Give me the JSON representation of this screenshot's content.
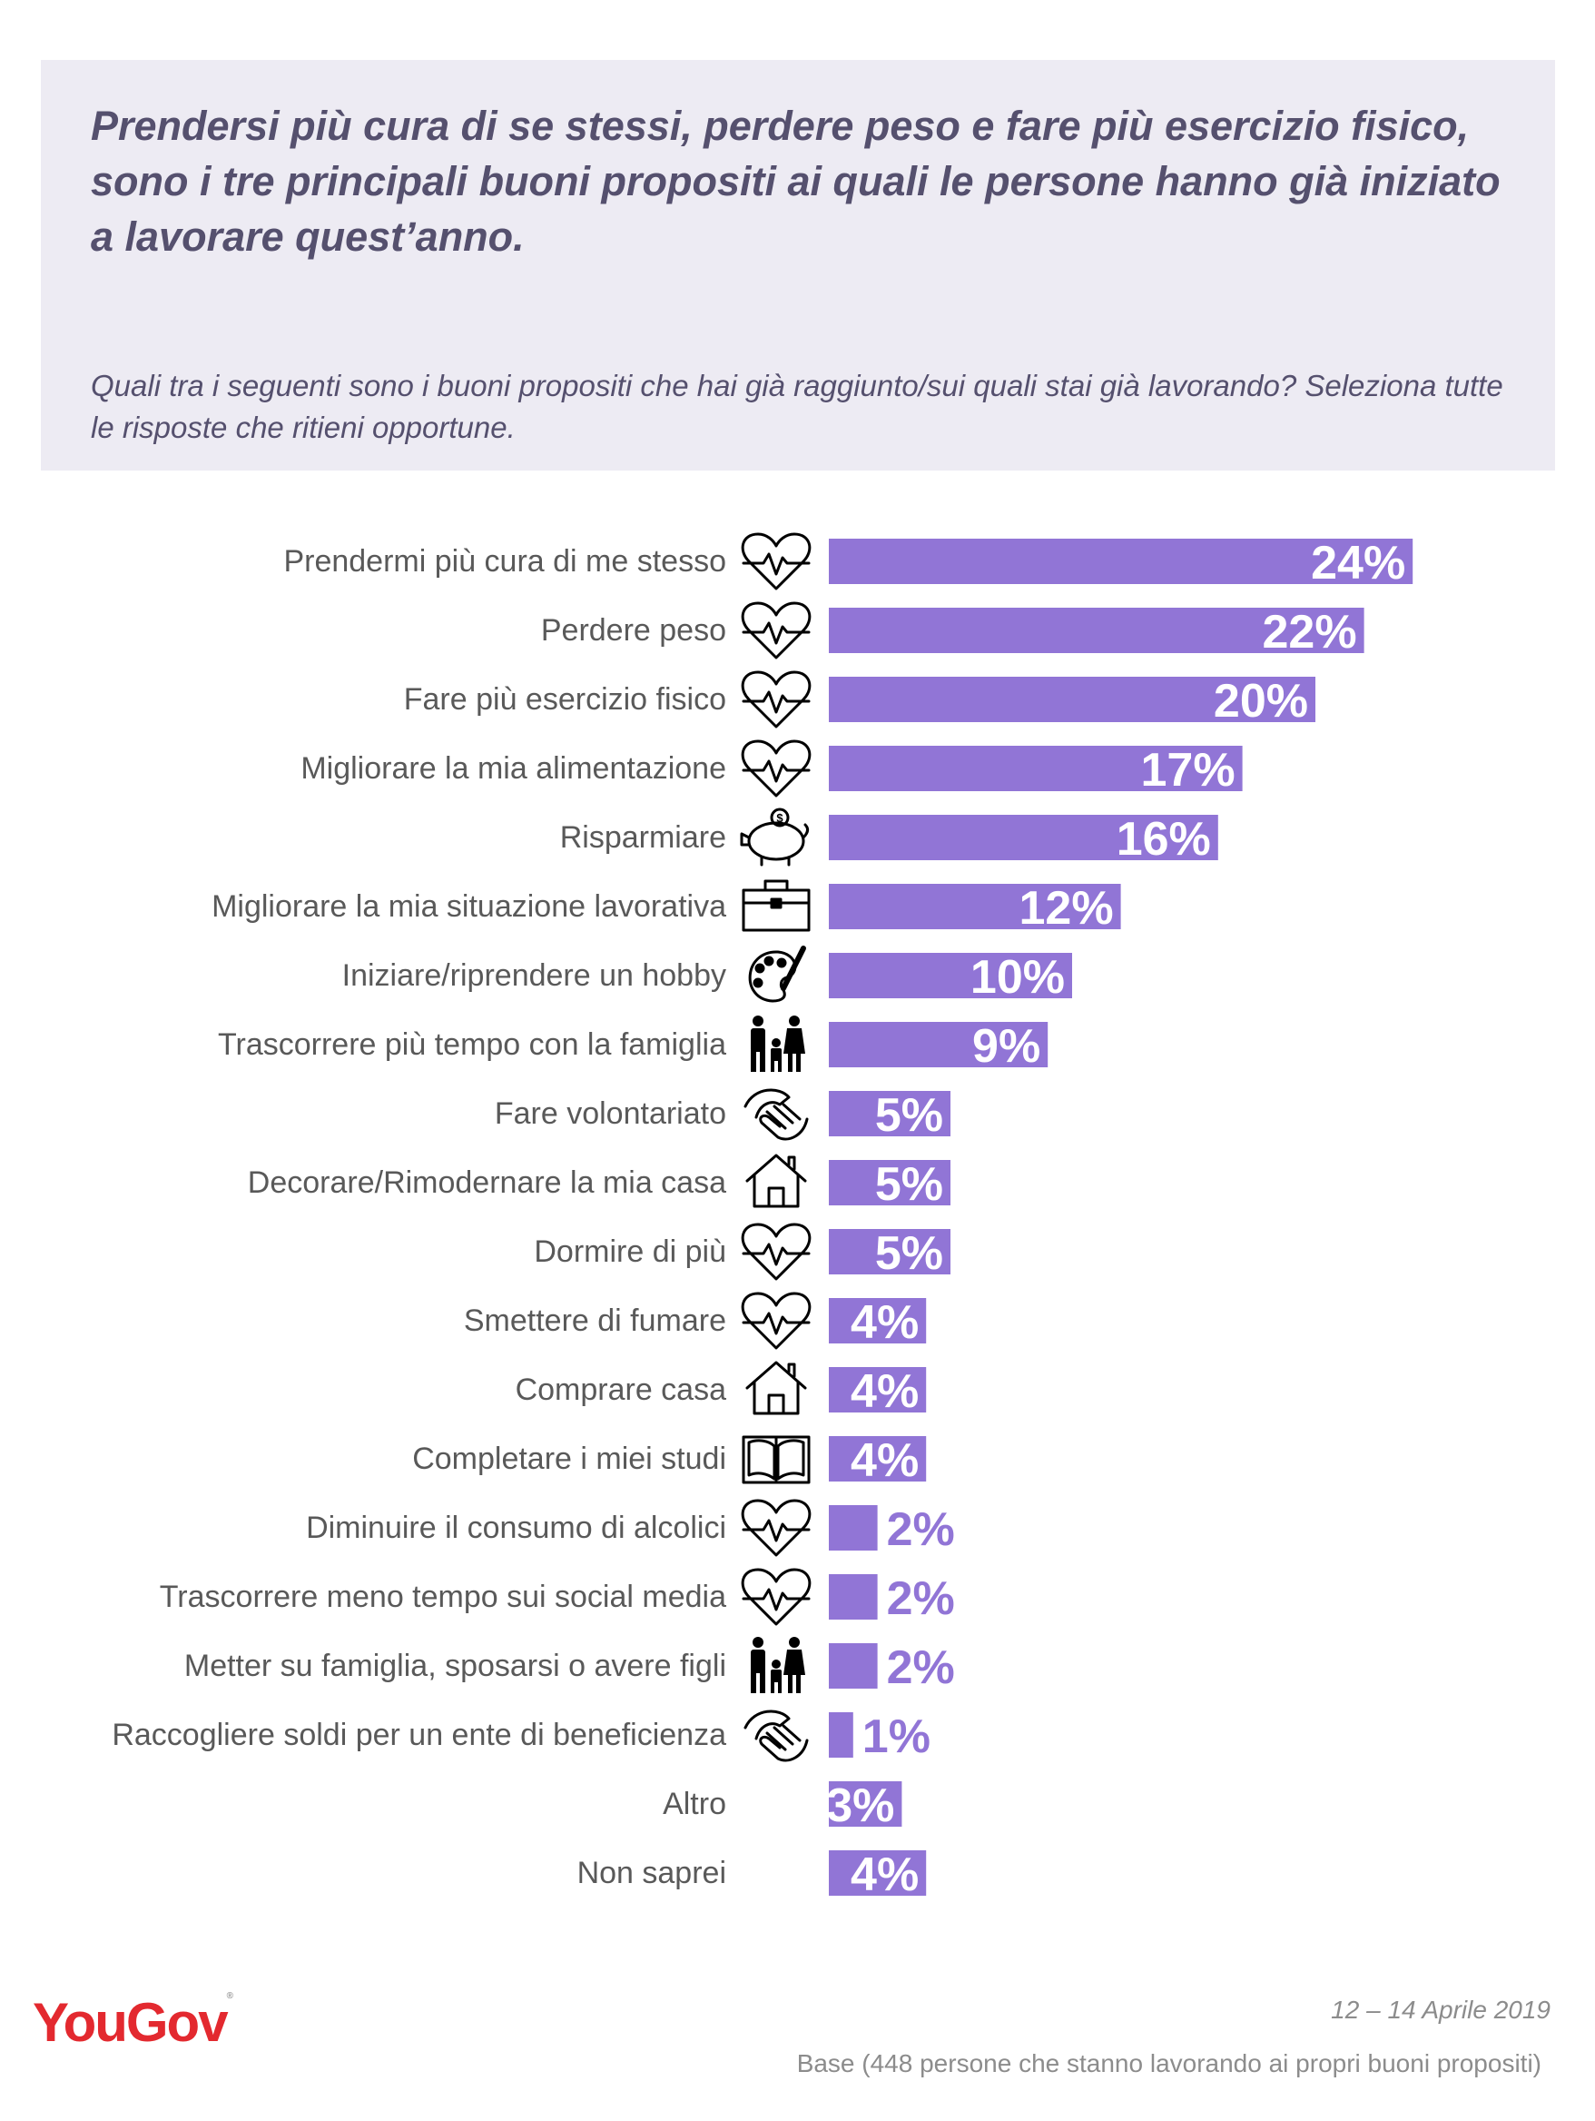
{
  "header": {
    "headline": "Prendersi più cura di se stessi, perdere peso e fare più esercizio fisico, sono i tre principali buoni propositi ai quali le persone hanno già iniziato a lavorare quest’anno.",
    "question": "Quali tra i seguenti sono i buoni propositi che hai già raggiunto/sui quali stai già lavorando? Seleziona tutte le risposte che ritieni opportune."
  },
  "colors": {
    "bar": "#9175d6",
    "label_inside": "#ffffff",
    "label_outside": "#9175d6",
    "header_bg": "#edebf3",
    "header_text": "#55506e",
    "brand": "#e3292f"
  },
  "chart_data": {
    "type": "bar",
    "orientation": "horizontal",
    "categories": [
      "Prendermi più cura di me stesso",
      "Perdere peso",
      "Fare più esercizio fisico",
      "Migliorare la mia alimentazione",
      "Risparmiare",
      "Migliorare la mia situazione lavorativa",
      "Iniziare/riprendere un hobby",
      "Trascorrere più tempo con la famiglia",
      "Fare volontariato",
      "Decorare/Rimodernare la mia casa",
      "Dormire di più",
      "Smettere di fumare",
      "Comprare casa",
      "Completare i miei studi",
      "Diminuire il consumo di alcolici",
      "Trascorrere meno tempo sui social media",
      "Metter su famiglia, sposarsi o avere figli",
      "Raccogliere soldi per un ente di beneficienza",
      "Altro",
      "Non saprei"
    ],
    "values": [
      24,
      22,
      20,
      17,
      16,
      12,
      10,
      9,
      5,
      5,
      5,
      4,
      4,
      4,
      2,
      2,
      2,
      1,
      3,
      4
    ],
    "value_labels": [
      "24%",
      "22%",
      "20%",
      "17%",
      "16%",
      "12%",
      "10%",
      "9%",
      "5%",
      "5%",
      "5%",
      "4%",
      "4%",
      "4%",
      "2%",
      "2%",
      "2%",
      "1%",
      "3%",
      "4%"
    ],
    "icons": [
      "heart-pulse-icon",
      "heart-pulse-icon",
      "heart-pulse-icon",
      "heart-pulse-icon",
      "piggy-bank-icon",
      "briefcase-icon",
      "palette-icon",
      "family-icon",
      "helping-hands-icon",
      "house-icon",
      "heart-pulse-icon",
      "heart-pulse-icon",
      "house-icon",
      "book-icon",
      "heart-pulse-icon",
      "heart-pulse-icon",
      "family-icon",
      "helping-hands-icon",
      "",
      ""
    ],
    "unit": "%",
    "legend": "none",
    "grid": false
  },
  "footer": {
    "date": "12 – 14 Aprile 2019",
    "base": "Base (448 persone che stanno lavorando ai propri buoni propositi)",
    "logo": "YouGov"
  }
}
